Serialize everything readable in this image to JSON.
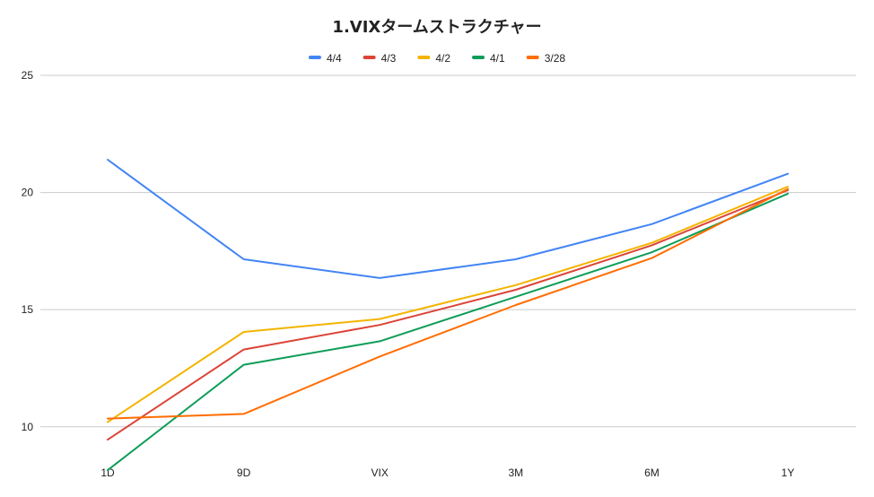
{
  "chart_data": {
    "type": "line",
    "title": "1.VIXタームストラクチャー",
    "categories": [
      "1D",
      "9D",
      "VIX",
      "3M",
      "6M",
      "1Y"
    ],
    "ylim": [
      8,
      25
    ],
    "yticks": [
      10,
      15,
      20,
      25
    ],
    "grid": true,
    "legend_position": "top",
    "series": [
      {
        "name": "4/4",
        "color": "#4285f4",
        "values": [
          21.4,
          17.15,
          16.35,
          17.15,
          18.65,
          20.8
        ]
      },
      {
        "name": "4/3",
        "color": "#db4437",
        "values": [
          9.45,
          13.3,
          14.35,
          15.85,
          17.75,
          20.1
        ]
      },
      {
        "name": "4/2",
        "color": "#f4b400",
        "values": [
          10.2,
          14.05,
          14.6,
          16.05,
          17.85,
          20.25
        ]
      },
      {
        "name": "4/1",
        "color": "#0f9d58",
        "values": [
          8.15,
          12.65,
          13.65,
          15.55,
          17.45,
          19.95
        ]
      },
      {
        "name": "3/28",
        "color": "#ff6d01",
        "values": [
          10.35,
          10.55,
          13.0,
          15.2,
          17.2,
          20.15
        ]
      }
    ]
  }
}
